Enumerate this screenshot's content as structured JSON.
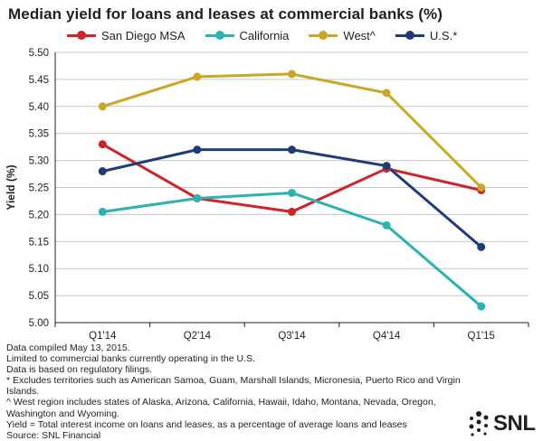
{
  "chart_data": {
    "type": "line",
    "title": "Median yield for loans and leases at commercial banks (%)",
    "ylabel": "Yield (%)",
    "xlabel": "",
    "categories": [
      "Q1'14",
      "Q2'14",
      "Q3'14",
      "Q4'14",
      "Q1'15"
    ],
    "ylim": [
      5.0,
      5.5
    ],
    "yticks": [
      "5.00",
      "5.05",
      "5.10",
      "5.15",
      "5.20",
      "5.25",
      "5.30",
      "5.35",
      "5.40",
      "5.45",
      "5.50"
    ],
    "grid": "horizontal",
    "legend_position": "top",
    "series": [
      {
        "name": "San Diego MSA",
        "color": "#d0232a",
        "values": [
          5.33,
          5.23,
          5.205,
          5.285,
          5.245
        ]
      },
      {
        "name": "California",
        "color": "#2bb3b1",
        "values": [
          5.205,
          5.23,
          5.24,
          5.18,
          5.03
        ]
      },
      {
        "name": "West^",
        "color": "#c9a727",
        "values": [
          5.4,
          5.455,
          5.46,
          5.425,
          5.25
        ]
      },
      {
        "name": "U.S.*",
        "color": "#1f3c7a",
        "values": [
          5.28,
          5.32,
          5.32,
          5.29,
          5.14
        ]
      }
    ]
  },
  "notes": [
    "Data compiled May 13, 2015.",
    "Limited to commercial banks currently operating in the U.S.",
    "Data is based on regulatory filings.",
    "* Excludes territories such as American Samoa, Guam, Marshall Islands, Micronesia, Puerto Rico and Virgin Islands.",
    "^ West region includes states of Alaska, Arizona, California, Hawaii, Idaho, Montana, Nevada, Oregon, Washington and Wyoming.",
    "Yield = Total interest income on loans and leases, as a percentage of average loans and leases",
    "Source: SNL Financial"
  ],
  "logo": {
    "text": "SNL",
    "icon": "snl-dots-icon"
  }
}
